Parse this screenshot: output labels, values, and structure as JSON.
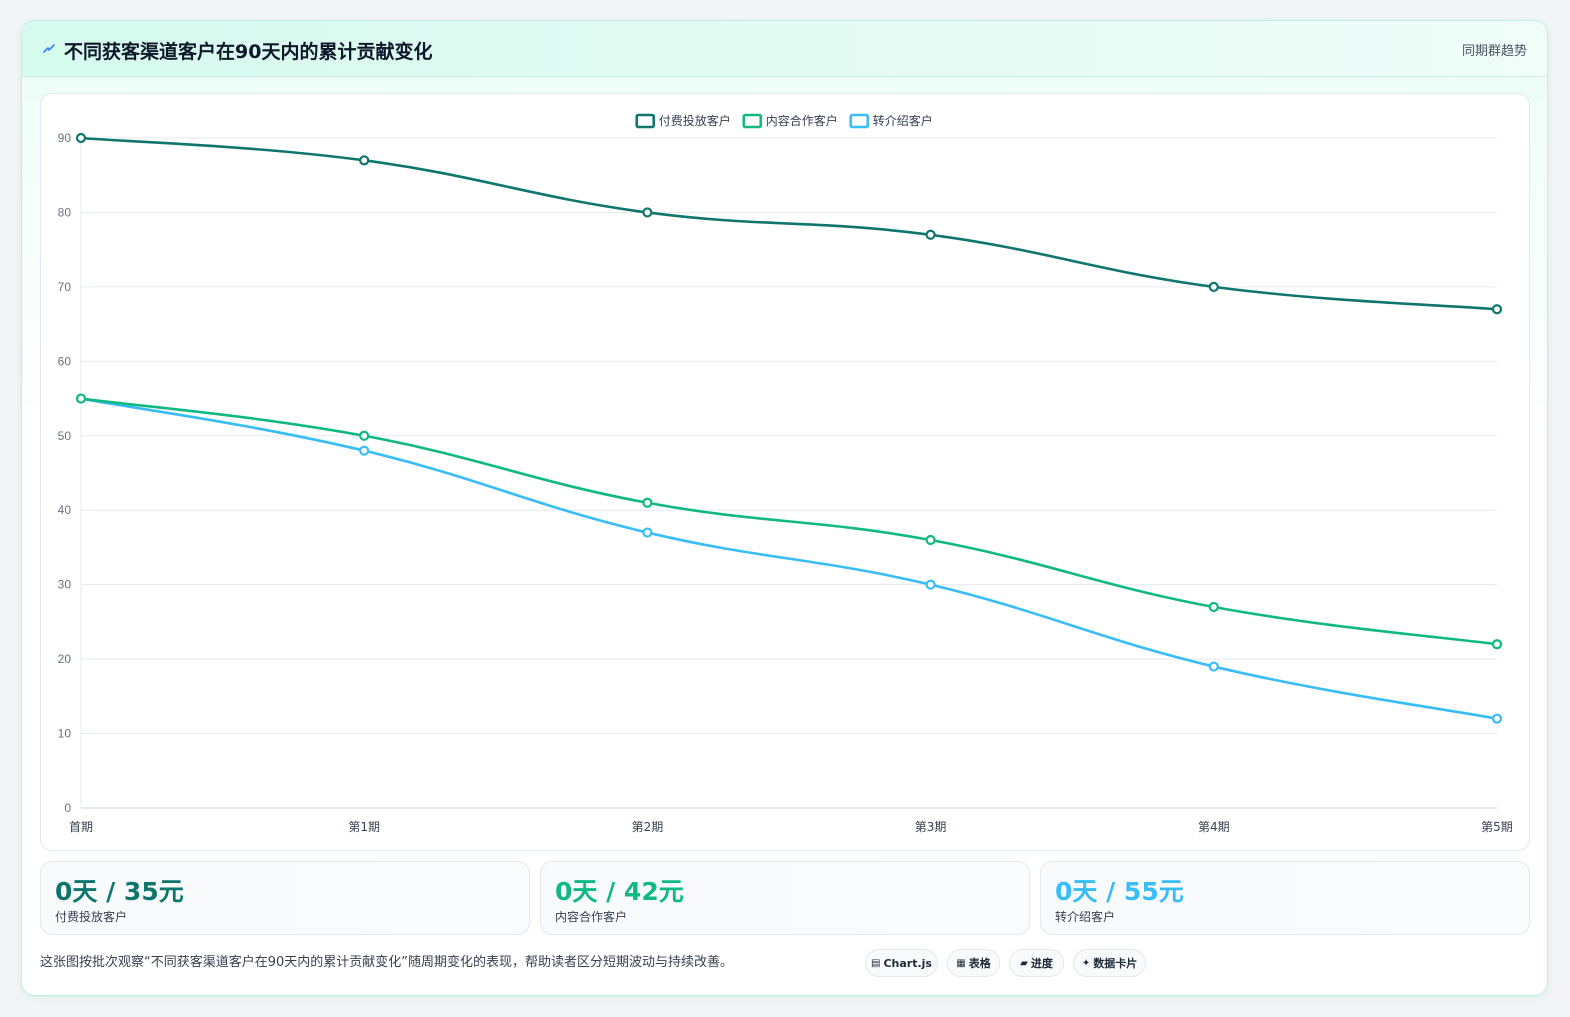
{
  "header": {
    "title": "不同获客渠道客户在90天内的累计贡献变化",
    "tag": "同期群趋势",
    "icon": "bolt-icon"
  },
  "chart_data": {
    "type": "line",
    "categories": [
      "首期",
      "第1期",
      "第2期",
      "第3期",
      "第4期",
      "第5期"
    ],
    "ylim": [
      0,
      90
    ],
    "yticks": [
      0,
      10,
      20,
      30,
      40,
      50,
      60,
      70,
      80,
      90
    ],
    "grid": true,
    "legend_position": "top-center",
    "series": [
      {
        "name": "付费投放客户",
        "color": "#0f766e",
        "values": [
          90,
          87,
          80,
          77,
          70,
          67
        ]
      },
      {
        "name": "内容合作客户",
        "color": "#10b981",
        "values": [
          55,
          50,
          41,
          36,
          27,
          22
        ]
      },
      {
        "name": "转介绍客户",
        "color": "#38bdf8",
        "values": [
          55,
          48,
          37,
          30,
          19,
          12
        ]
      }
    ]
  },
  "stats": [
    {
      "value": "0天 / 35元",
      "label": "付费投放客户",
      "color": "#0f766e"
    },
    {
      "value": "0天 / 42元",
      "label": "内容合作客户",
      "color": "#10b981"
    },
    {
      "value": "0天 / 55元",
      "label": "转介绍客户",
      "color": "#38bdf8"
    }
  ],
  "footer": {
    "note": "这张图按批次观察“不同获客渠道客户在90天内的累计贡献变化”随周期变化的表现，帮助读者区分短期波动与持续改善。",
    "pills": [
      {
        "icon": "▤",
        "label": "Chart.js",
        "icon_name": "chart-icon"
      },
      {
        "icon": "▦",
        "label": "表格",
        "icon_name": "table-icon"
      },
      {
        "icon": "▰",
        "label": "进度",
        "icon_name": "progress-icon"
      },
      {
        "icon": "✦",
        "label": "数据卡片",
        "icon_name": "sparkle-icon"
      }
    ]
  }
}
